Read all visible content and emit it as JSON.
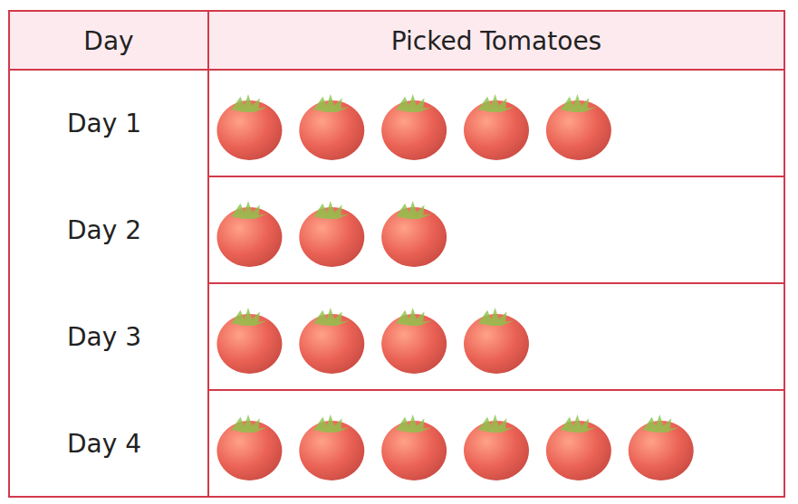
{
  "chart_data": {
    "type": "pictograph",
    "orientation": "horizontal",
    "xlabel": "Picked Tomatoes",
    "ylabel": "Day",
    "categories": [
      "Day 1",
      "Day 2",
      "Day 3",
      "Day 4"
    ],
    "values": [
      5,
      3,
      4,
      6
    ],
    "color": "#e53a2a",
    "xlim": [
      0,
      7
    ],
    "grid": true,
    "tick_labels": "y"
  }
}
